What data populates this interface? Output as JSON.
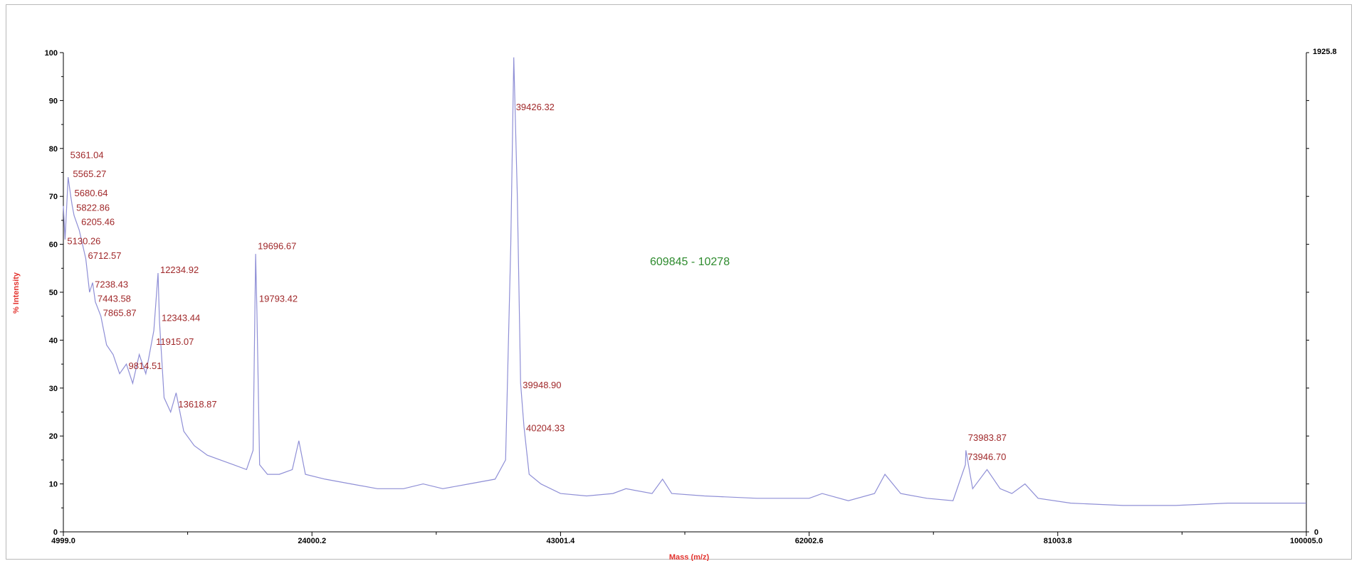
{
  "chart_data": {
    "type": "line",
    "xlabel": "Mass (m/z)",
    "ylabel": "% Intensity",
    "right_axis_top": "1925.8",
    "right_axis_bottom": "0",
    "annotation": "609845 - 10278",
    "xlim": [
      4999.0,
      100005.0
    ],
    "ylim": [
      0,
      100
    ],
    "x_ticks": [
      4999.0,
      24000.2,
      43001.4,
      62002.6,
      81003.8,
      100005.0
    ],
    "x_tick_labels": [
      "4999.0",
      "24000.2",
      "43001.4",
      "62002.6",
      "81003.8",
      "100005.0"
    ],
    "y_ticks": [
      0,
      10,
      20,
      30,
      40,
      50,
      60,
      70,
      80,
      90,
      100
    ],
    "y_tick_labels": [
      "0",
      "10",
      "20",
      "30",
      "40",
      "50",
      "60",
      "70",
      "80",
      "90",
      "100"
    ],
    "grid": false,
    "colors": {
      "spectrum": "#8f8fd6",
      "peak_label": "#a0282a",
      "axis_title": "#e3342f",
      "annotation": "#2e8b2e"
    },
    "series": [
      {
        "values": [
          [
            5000,
            68
          ],
          [
            5130,
            61
          ],
          [
            5361,
            74
          ],
          [
            5565,
            70
          ],
          [
            5680,
            68
          ],
          [
            5823,
            66
          ],
          [
            6205,
            63
          ],
          [
            6713,
            57
          ],
          [
            7000,
            50
          ],
          [
            7238,
            52
          ],
          [
            7443,
            48
          ],
          [
            7867,
            45
          ],
          [
            8300,
            39
          ],
          [
            8800,
            37
          ],
          [
            9300,
            33
          ],
          [
            9814,
            35
          ],
          [
            10300,
            31
          ],
          [
            10800,
            37
          ],
          [
            11300,
            33
          ],
          [
            11915,
            42
          ],
          [
            12235,
            54
          ],
          [
            12343,
            44
          ],
          [
            12700,
            28
          ],
          [
            13200,
            25
          ],
          [
            13619,
            29
          ],
          [
            14200,
            21
          ],
          [
            15000,
            18
          ],
          [
            16000,
            16
          ],
          [
            17000,
            15
          ],
          [
            18000,
            14
          ],
          [
            19000,
            13
          ],
          [
            19500,
            17
          ],
          [
            19697,
            58
          ],
          [
            19793,
            46
          ],
          [
            20000,
            14
          ],
          [
            20600,
            12
          ],
          [
            21500,
            12
          ],
          [
            22500,
            13
          ],
          [
            23000,
            19
          ],
          [
            23500,
            12
          ],
          [
            25000,
            11
          ],
          [
            27000,
            10
          ],
          [
            29000,
            9
          ],
          [
            31000,
            9
          ],
          [
            32500,
            10
          ],
          [
            34000,
            9
          ],
          [
            36000,
            10
          ],
          [
            38000,
            11
          ],
          [
            38800,
            15
          ],
          [
            39200,
            60
          ],
          [
            39426,
            99
          ],
          [
            39700,
            70
          ],
          [
            39949,
            31
          ],
          [
            40204,
            22
          ],
          [
            40600,
            12
          ],
          [
            41500,
            10
          ],
          [
            43000,
            8
          ],
          [
            45000,
            7.5
          ],
          [
            47000,
            8
          ],
          [
            48000,
            9
          ],
          [
            50000,
            8
          ],
          [
            50800,
            11
          ],
          [
            51500,
            8
          ],
          [
            54000,
            7.5
          ],
          [
            58000,
            7
          ],
          [
            62000,
            7
          ],
          [
            63000,
            8
          ],
          [
            65000,
            6.5
          ],
          [
            67000,
            8
          ],
          [
            67800,
            12
          ],
          [
            69000,
            8
          ],
          [
            71000,
            7
          ],
          [
            73000,
            6.5
          ],
          [
            74500,
            9
          ],
          [
            75600,
            13
          ],
          [
            73947,
            14
          ],
          [
            73984,
            17
          ],
          [
            76600,
            9
          ],
          [
            77500,
            8
          ],
          [
            78500,
            10
          ],
          [
            79500,
            7
          ],
          [
            82000,
            6
          ],
          [
            86000,
            5.5
          ],
          [
            90000,
            5.5
          ],
          [
            94000,
            6
          ],
          [
            98000,
            6
          ],
          [
            100000,
            6
          ]
        ]
      }
    ],
    "peak_labels": [
      {
        "text": "5361.04",
        "x": 5361.04,
        "y": 78
      },
      {
        "text": "5565.27",
        "x": 5565.27,
        "y": 74
      },
      {
        "text": "5680.64",
        "x": 5680.64,
        "y": 70
      },
      {
        "text": "5822.86",
        "x": 5822.86,
        "y": 67
      },
      {
        "text": "6205.46",
        "x": 6205.46,
        "y": 64
      },
      {
        "text": "5130.26",
        "x": 5130.26,
        "y": 60
      },
      {
        "text": "6712.57",
        "x": 6712.57,
        "y": 57
      },
      {
        "text": "7238.43",
        "x": 7238.43,
        "y": 51
      },
      {
        "text": "7443.58",
        "x": 7443.58,
        "y": 48
      },
      {
        "text": "7865.87",
        "x": 7865.87,
        "y": 45
      },
      {
        "text": "12234.92",
        "x": 12234.92,
        "y": 54
      },
      {
        "text": "12343.44",
        "x": 12343.44,
        "y": 44
      },
      {
        "text": "11915.07",
        "x": 11915.07,
        "y": 39
      },
      {
        "text": "9814.51",
        "x": 9814.51,
        "y": 34
      },
      {
        "text": "13618.87",
        "x": 13618.87,
        "y": 26
      },
      {
        "text": "19696.67",
        "x": 19696.67,
        "y": 59
      },
      {
        "text": "19793.42",
        "x": 19793.42,
        "y": 48
      },
      {
        "text": "39426.32",
        "x": 39426.32,
        "y": 88
      },
      {
        "text": "39948.90",
        "x": 39948.9,
        "y": 30
      },
      {
        "text": "40204.33",
        "x": 40204.33,
        "y": 21
      },
      {
        "text": "73983.87",
        "x": 73983.87,
        "y": 19
      },
      {
        "text": "73946.70",
        "x": 73946.7,
        "y": 15
      }
    ]
  }
}
